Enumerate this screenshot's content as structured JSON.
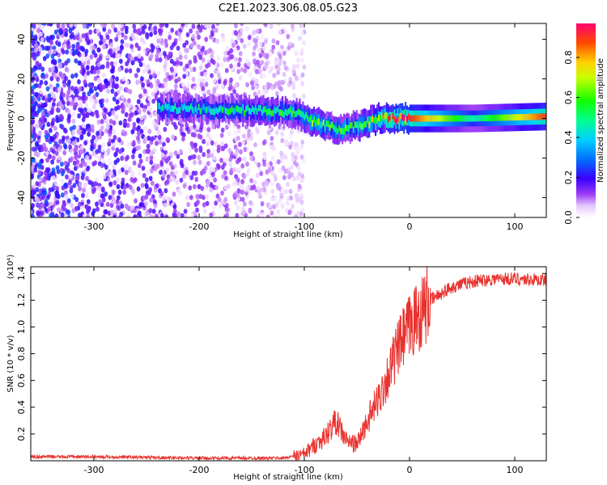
{
  "title": "C2E1.2023.306.08.05.G23",
  "chart_data": [
    {
      "type": "heatmap",
      "xlabel": "Height of straight line (km)",
      "ylabel": "Frequency (Hz)",
      "xlim": [
        -360,
        130
      ],
      "ylim": [
        -50,
        48
      ],
      "xticks": [
        -300,
        -200,
        -100,
        0,
        100
      ],
      "yticks": [
        -40,
        -20,
        0,
        20,
        40
      ],
      "colorbar": {
        "label": "Normalized spectral amplitude",
        "range": [
          0.0,
          0.97
        ],
        "ticks": [
          0.0,
          0.2,
          0.4,
          0.6,
          0.8
        ],
        "tick_labels": [
          "0.0",
          "0.2",
          "0.4",
          "0.6",
          "0.8"
        ],
        "colormap": "rainbow"
      },
      "center_track": [
        {
          "x": -220,
          "f": 5,
          "amp": 0.45
        },
        {
          "x": -150,
          "f": 4,
          "amp": 0.5
        },
        {
          "x": -110,
          "f": 3,
          "amp": 0.55
        },
        {
          "x": -85,
          "f": -3,
          "amp": 0.6
        },
        {
          "x": -65,
          "f": -6,
          "amp": 0.55
        },
        {
          "x": -45,
          "f": -3,
          "amp": 0.6
        },
        {
          "x": -30,
          "f": 0,
          "amp": 0.7
        },
        {
          "x": -10,
          "f": 0,
          "amp": 0.95
        },
        {
          "x": 0,
          "f": 0,
          "amp": 0.9
        },
        {
          "x": 60,
          "f": 0,
          "amp": 0.45
        },
        {
          "x": 130,
          "f": 1,
          "amp": 0.9
        }
      ],
      "noise_region_end": -110
    },
    {
      "type": "line",
      "xlabel": "Height of straight line (km)",
      "ylabel": "SNR (10 * v/v)",
      "y_multiplier": "(x10⁴)",
      "xlim": [
        -360,
        130
      ],
      "ylim": [
        0,
        1.45
      ],
      "xticks": [
        -300,
        -200,
        -100,
        0,
        100
      ],
      "yticks": [
        0.2,
        0.4,
        0.6,
        0.8,
        1.0,
        1.2,
        1.4
      ],
      "ytick_labels": [
        "0.2",
        "0.4",
        "0.6",
        "0.8",
        "1.0",
        "1.2",
        "1.4"
      ],
      "color": "#e8322e",
      "series": [
        {
          "x": [
            -360,
            -300,
            -200,
            -120,
            -100,
            -90,
            -80,
            -70,
            -60,
            -50,
            -40,
            -30,
            -20,
            -10,
            0,
            20,
            40,
            60,
            80,
            100,
            130
          ],
          "values": [
            0.03,
            0.03,
            0.02,
            0.02,
            0.05,
            0.12,
            0.18,
            0.3,
            0.15,
            0.12,
            0.3,
            0.45,
            0.65,
            0.85,
            1.0,
            1.2,
            1.3,
            1.34,
            1.36,
            1.36,
            1.35
          ]
        }
      ]
    }
  ]
}
